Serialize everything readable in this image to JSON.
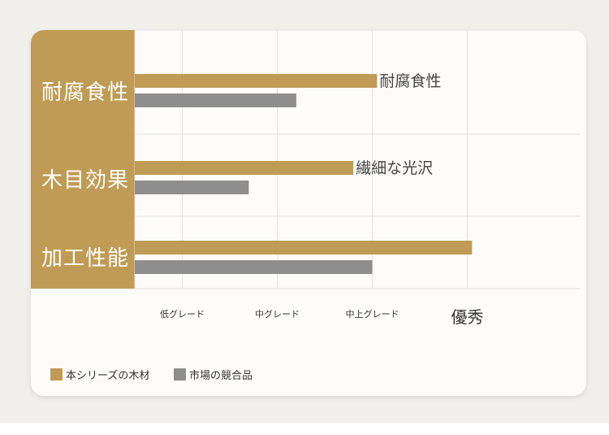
{
  "chart_data": {
    "type": "bar",
    "orientation": "horizontal",
    "categories": [
      "耐腐食性",
      "木目効果",
      "加工性能"
    ],
    "x_ticks": [
      "低グレード",
      "中グレード",
      "中上グレード",
      "優秀"
    ],
    "x_scale": "ordinal-grade",
    "series": [
      {
        "name": "本シリーズの木材",
        "values": [
          3.05,
          2.8,
          4.05
        ],
        "color": "#bf9b55"
      },
      {
        "name": "市場の競合品",
        "values": [
          2.2,
          1.7,
          3.0
        ],
        "color": "#8f8e8f"
      }
    ],
    "annotations": [
      "耐腐食性",
      "繊細な光沢",
      ""
    ],
    "xlim": [
      0.5,
      4.5
    ],
    "grid": true,
    "legend_position": "bottom-left"
  },
  "colors": {
    "accent": "#bf9b55",
    "competitor": "#8f8e8f",
    "grid": "#e3e0dc"
  }
}
